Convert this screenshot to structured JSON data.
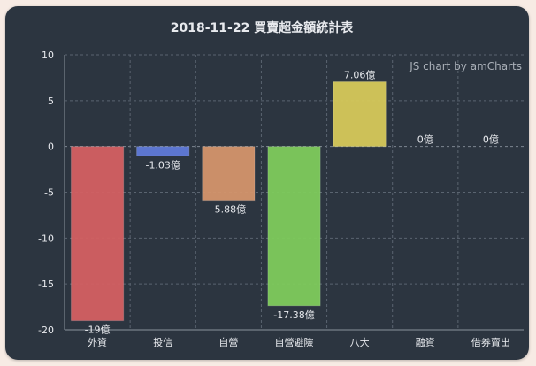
{
  "chart_data": {
    "type": "bar",
    "title": "2018-11-22 買賣超金額統計表",
    "credit": "JS chart by amCharts",
    "categories": [
      "外資",
      "投信",
      "自營",
      "自營避險",
      "八大",
      "融資",
      "借券賣出"
    ],
    "values": [
      -19,
      -1.03,
      -5.88,
      -17.38,
      7.06,
      0,
      0
    ],
    "value_labels": [
      "-19億",
      "-1.03億",
      "-5.88億",
      "-17.38億",
      "7.06億",
      "0億",
      "0億"
    ],
    "bar_colors": [
      "#d46062",
      "#5f7ad8",
      "#d4956c",
      "#7ecb5c",
      "#d6c95a",
      "#c07fd8",
      "#6cc6d0"
    ],
    "ylim": [
      -20,
      10
    ],
    "yticks": [
      "10",
      "5",
      "0",
      "-5",
      "-10",
      "-15",
      "-20"
    ],
    "xlabel": "",
    "ylabel": "",
    "grid": true,
    "colors": {
      "background": "#2c3540",
      "text": "#e8eaee",
      "grid": "#5a6470",
      "credit": "#aab0b8"
    }
  }
}
